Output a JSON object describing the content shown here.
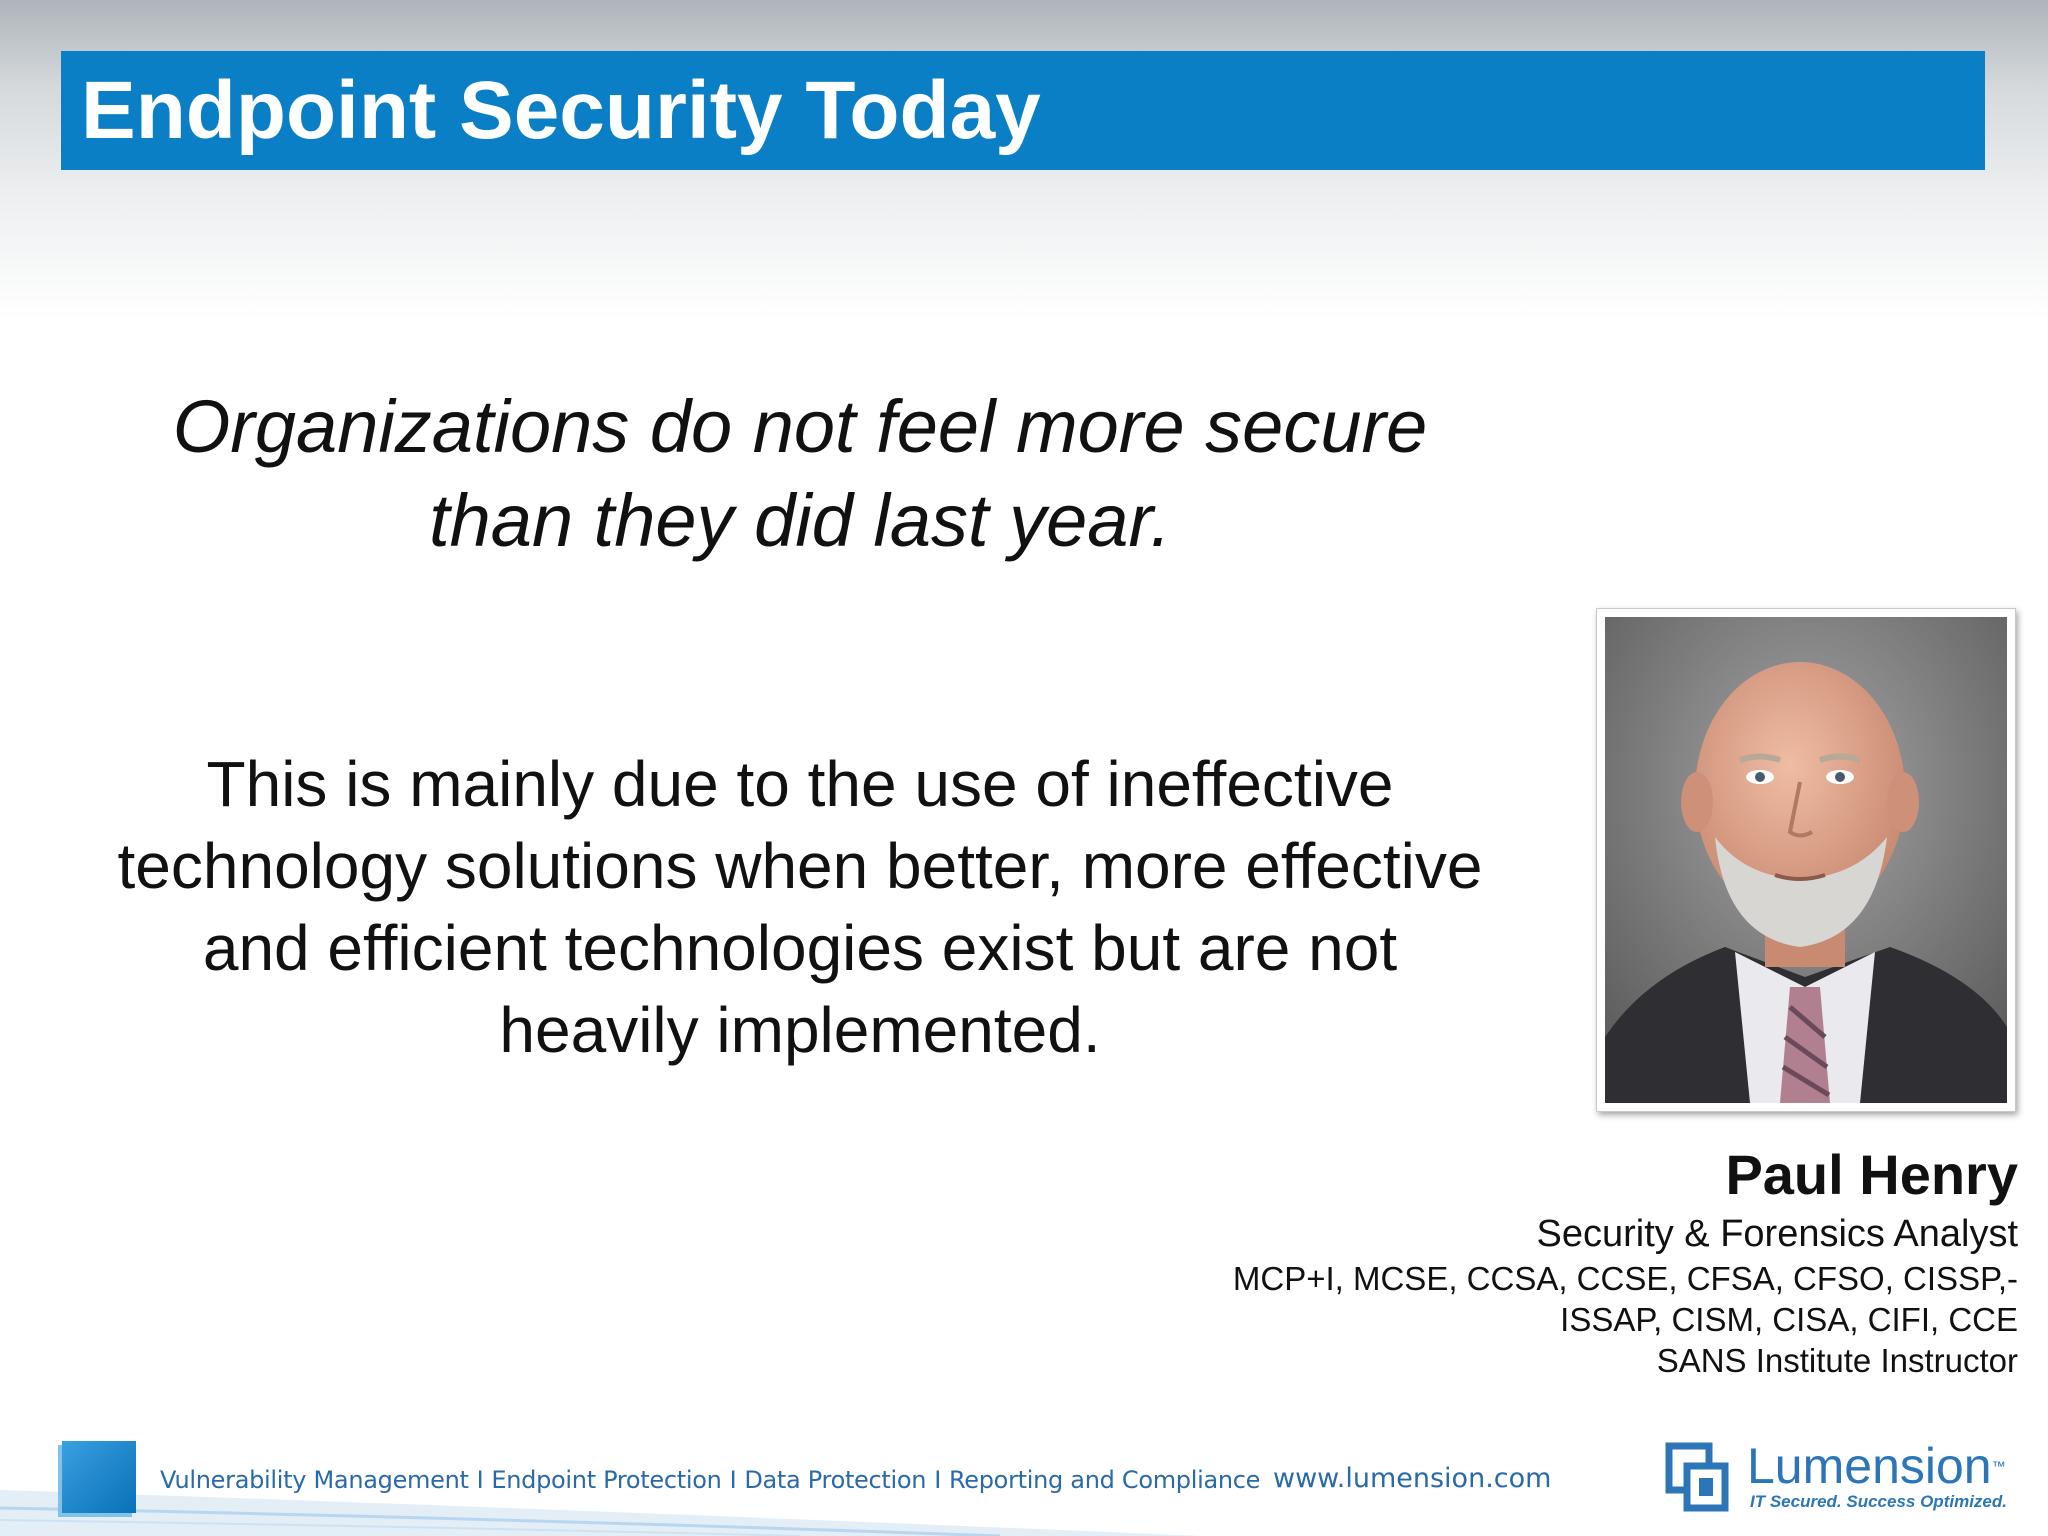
{
  "slide": {
    "title": "Endpoint Security Today",
    "quote_lines": [
      "Organizations do not feel more secure",
      "than they did last year."
    ],
    "body_lines": [
      "This is mainly due to the use of ineffective",
      "technology solutions when better, more effective",
      "and efficient technologies exist but are not",
      "heavily implemented."
    ]
  },
  "speaker": {
    "name": "Paul Henry",
    "role": "Security & Forensics Analyst",
    "credentials_line1": "MCP+I, MCSE, CCSA, CCSE, CFSA, CFSO, CISSP,-",
    "credentials_line2": "ISSAP, CISM, CISA, CIFI, CCE",
    "affiliation": "SANS Institute Instructor",
    "photo_description_icon": "speaker-portrait"
  },
  "footer": {
    "links": [
      "Vulnerability Management",
      "Endpoint Protection",
      "Data Protection",
      "Reporting and Compliance"
    ],
    "separator": "I",
    "url": "www.lumension.com",
    "logo_name": "Lumension",
    "logo_tm": "™",
    "tagline": "IT Secured. Success Optimized."
  },
  "colors": {
    "title_bar": "#0a7fc6",
    "footer_text": "#2a6aa8",
    "logo": "#2c76b8"
  }
}
